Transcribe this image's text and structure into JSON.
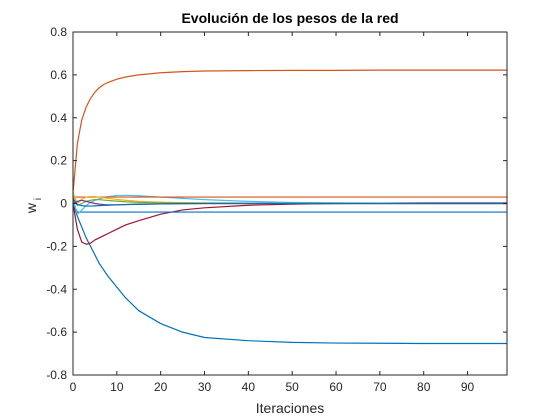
{
  "chart_data": {
    "type": "line",
    "title": "Evolución de los pesos de la red",
    "xlabel": "Iteraciones",
    "ylabel_main": "w",
    "ylabel_sub": "i",
    "xlim": [
      0,
      99
    ],
    "ylim": [
      -0.8,
      0.8
    ],
    "xticks": [
      0,
      10,
      20,
      30,
      40,
      50,
      60,
      70,
      80,
      90
    ],
    "yticks": [
      -0.8,
      -0.6,
      -0.4,
      -0.2,
      0,
      0.2,
      0.4,
      0.6,
      0.8
    ],
    "grid": false,
    "x": [
      0,
      1,
      2,
      3,
      4,
      5,
      6,
      7,
      8,
      10,
      12,
      15,
      20,
      25,
      30,
      40,
      50,
      60,
      70,
      80,
      90,
      99
    ],
    "series": [
      {
        "color": "#D95319",
        "values": [
          0.05,
          0.28,
          0.39,
          0.45,
          0.49,
          0.52,
          0.54,
          0.555,
          0.565,
          0.58,
          0.59,
          0.6,
          0.61,
          0.615,
          0.618,
          0.62,
          0.621,
          0.621,
          0.622,
          0.622,
          0.622,
          0.622
        ]
      },
      {
        "color": "#0072BD",
        "values": [
          0.0,
          -0.06,
          -0.11,
          -0.16,
          -0.2,
          -0.24,
          -0.28,
          -0.31,
          -0.34,
          -0.39,
          -0.44,
          -0.5,
          -0.56,
          -0.6,
          -0.625,
          -0.64,
          -0.648,
          -0.651,
          -0.652,
          -0.653,
          -0.653,
          -0.653
        ]
      },
      {
        "color": "#A2142F",
        "values": [
          0.0,
          -0.12,
          -0.18,
          -0.19,
          -0.185,
          -0.17,
          -0.16,
          -0.15,
          -0.14,
          -0.12,
          -0.1,
          -0.08,
          -0.05,
          -0.03,
          -0.02,
          -0.008,
          -0.003,
          0.0,
          0.002,
          0.003,
          0.003,
          0.003
        ]
      },
      {
        "color": "#0072BD",
        "values": [
          0.0,
          -0.04,
          -0.04,
          -0.04,
          -0.04,
          -0.04,
          -0.04,
          -0.04,
          -0.04,
          -0.04,
          -0.04,
          -0.04,
          -0.04,
          -0.04,
          -0.04,
          -0.04,
          -0.04,
          -0.04,
          -0.04,
          -0.04,
          -0.04,
          -0.04
        ]
      },
      {
        "color": "#4DBEEE",
        "values": [
          0.02,
          -0.05,
          -0.03,
          -0.01,
          0.005,
          0.015,
          0.022,
          0.028,
          0.032,
          0.037,
          0.038,
          0.036,
          0.03,
          0.024,
          0.018,
          0.01,
          0.005,
          0.003,
          0.002,
          0.001,
          0.001,
          0.001
        ]
      },
      {
        "color": "#D95319",
        "values": [
          0.03,
          0.03,
          0.03,
          0.03,
          0.03,
          0.03,
          0.03,
          0.03,
          0.03,
          0.03,
          0.03,
          0.03,
          0.03,
          0.03,
          0.03,
          0.03,
          0.03,
          0.03,
          0.03,
          0.03,
          0.03,
          0.03
        ]
      },
      {
        "color": "#EDB120",
        "values": [
          0.05,
          0.0,
          0.02,
          0.03,
          0.033,
          0.032,
          0.03,
          0.027,
          0.024,
          0.019,
          0.015,
          0.01,
          0.006,
          0.004,
          0.003,
          0.002,
          0.001,
          0.001,
          0.001,
          0.001,
          0.001,
          0.001
        ]
      },
      {
        "color": "#77AC30",
        "values": [
          0.03,
          -0.01,
          0.0,
          0.01,
          0.015,
          0.018,
          0.018,
          0.016,
          0.014,
          0.011,
          0.008,
          0.005,
          0.003,
          0.002,
          0.001,
          0.001,
          0.0,
          0.0,
          0.0,
          0.0,
          0.0,
          0.0
        ]
      },
      {
        "color": "#7E2F8E",
        "values": [
          0.0,
          0.01,
          0.015,
          0.01,
          0.005,
          0.0,
          -0.003,
          -0.005,
          -0.006,
          -0.006,
          -0.005,
          -0.004,
          -0.002,
          -0.001,
          0.0,
          0.0,
          0.0,
          0.0,
          0.0,
          0.0,
          0.0,
          0.0
        ]
      },
      {
        "color": "#0072BD",
        "values": [
          0.02,
          -0.005,
          -0.01,
          -0.012,
          -0.012,
          -0.011,
          -0.01,
          -0.009,
          -0.008,
          -0.006,
          -0.005,
          -0.003,
          -0.002,
          -0.001,
          0.0,
          0.0,
          0.0,
          0.0,
          0.0,
          0.0,
          0.0,
          0.0
        ]
      }
    ]
  }
}
